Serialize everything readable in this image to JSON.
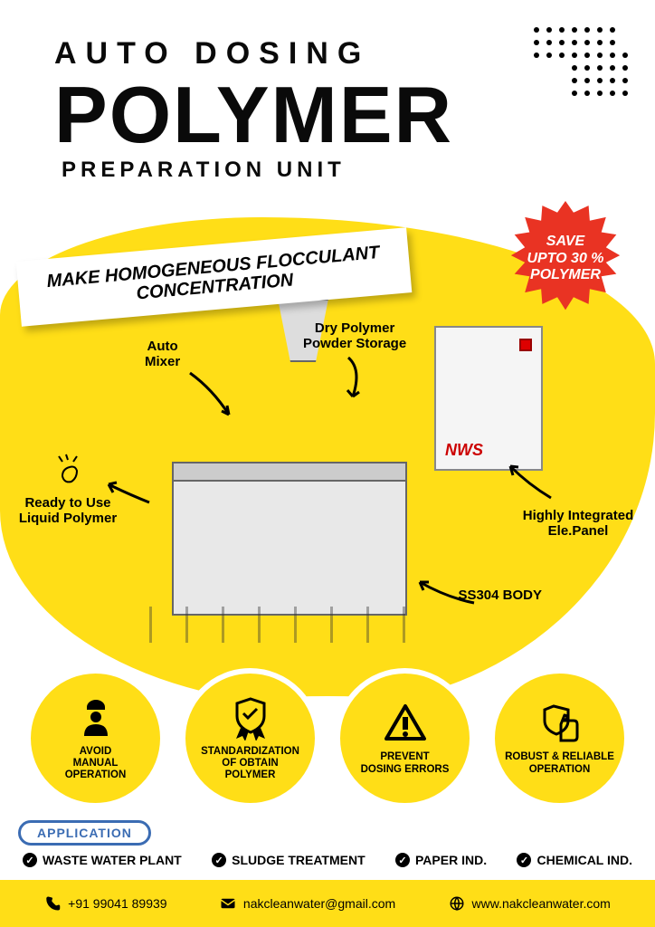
{
  "header": {
    "line1": "AUTO DOSING",
    "line2": "POLYMER",
    "line3": "PREPARATION UNIT"
  },
  "callout": {
    "line1": "MAKE HOMOGENEOUS FLOCCULANT",
    "line2": "CONCENTRATION"
  },
  "burst": {
    "line1": "SAVE",
    "line2": "UPTO 30 %",
    "line3": "POLYMER",
    "fill": "#e93323"
  },
  "annotations": {
    "dry_storage": "Dry Polymer\nPowder Storage",
    "auto_mixer": "Auto\nMixer",
    "ready_liquid": "Ready to Use\nLiquid Polymer",
    "ele_panel": "Highly Integrated\nEle.Panel",
    "ss304": "SS304 BODY"
  },
  "machine": {
    "brand": "NWS"
  },
  "features": [
    {
      "icon": "worker-icon",
      "text": "AVOID\nMANUAL\nOPERATION"
    },
    {
      "icon": "ribbon-shield-icon",
      "text": "STANDARDIZATION\nOF OBTAIN\nPOLYMER"
    },
    {
      "icon": "warning-icon",
      "text": "PREVENT\nDOSING ERRORS"
    },
    {
      "icon": "thumbs-shield-icon",
      "text": "ROBUST & RELIABLE\nOPERATION"
    }
  ],
  "application": {
    "label": "APPLICATION",
    "items": [
      "WASTE WATER PLANT",
      "SLUDGE TREATMENT",
      "PAPER IND.",
      "CHEMICAL IND."
    ]
  },
  "footer": {
    "phone": "+91 99041 89939",
    "email": "nakcleanwater@gmail.com",
    "website": "www.nakcleanwater.com"
  },
  "colors": {
    "yellow": "#ffde17",
    "red": "#e93323",
    "blue": "#3b6cb3",
    "black": "#0a0a0a"
  }
}
